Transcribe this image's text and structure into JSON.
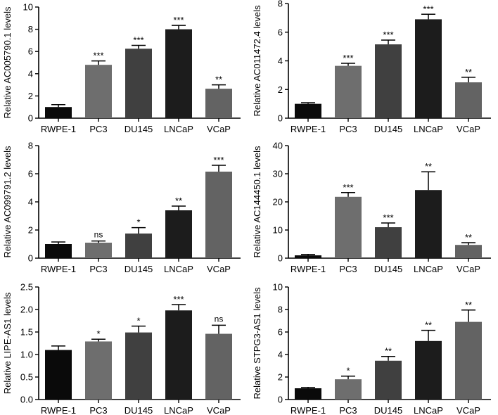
{
  "figure_title": "",
  "chart_data": [
    {
      "type": "bar",
      "title": "",
      "xlabel": "",
      "ylabel": "Relative AC005790.1 levels",
      "ylim": [
        0,
        10
      ],
      "yticks": [
        "0",
        "2",
        "4",
        "6",
        "8",
        "10"
      ],
      "categories": [
        "RWPE-1",
        "PC3",
        "DU145",
        "LNCaP",
        "VCaP"
      ],
      "values": [
        1.0,
        4.8,
        6.25,
        8.0,
        2.65
      ],
      "errors": [
        0.22,
        0.35,
        0.3,
        0.35,
        0.35
      ],
      "significance": [
        "",
        "***",
        "***",
        "***",
        "**"
      ],
      "colors": [
        "#0a0a0a",
        "#6e6e6e",
        "#404040",
        "#1c1c1c",
        "#636363"
      ]
    },
    {
      "type": "bar",
      "title": "",
      "xlabel": "",
      "ylabel": "Relative AC011472.4 levels",
      "ylim": [
        0,
        8
      ],
      "yticks": [
        "0",
        "2",
        "4",
        "6",
        "8"
      ],
      "categories": [
        "RWPE-1",
        "PC3",
        "DU145",
        "LNCaP",
        "VCaP"
      ],
      "values": [
        1.0,
        3.65,
        5.15,
        6.9,
        2.5
      ],
      "errors": [
        0.08,
        0.18,
        0.3,
        0.35,
        0.35
      ],
      "significance": [
        "",
        "***",
        "***",
        "***",
        "**"
      ],
      "colors": [
        "#0a0a0a",
        "#6e6e6e",
        "#404040",
        "#1c1c1c",
        "#636363"
      ]
    },
    {
      "type": "bar",
      "title": "",
      "xlabel": "",
      "ylabel": "Relative AC099791.2 levels",
      "ylim": [
        0,
        8
      ],
      "yticks": [
        "0",
        "2",
        "4",
        "6",
        "8"
      ],
      "categories": [
        "RWPE-1",
        "PC3",
        "DU145",
        "LNCaP",
        "VCaP"
      ],
      "values": [
        1.0,
        1.1,
        1.75,
        3.4,
        6.15
      ],
      "errors": [
        0.15,
        0.12,
        0.42,
        0.3,
        0.45
      ],
      "significance": [
        "",
        "ns",
        "*",
        "**",
        "***"
      ],
      "colors": [
        "#0a0a0a",
        "#6e6e6e",
        "#404040",
        "#1c1c1c",
        "#636363"
      ]
    },
    {
      "type": "bar",
      "title": "",
      "xlabel": "",
      "ylabel": "Relative AC144450.1 levels",
      "ylim": [
        0,
        40
      ],
      "yticks": [
        "0",
        "10",
        "20",
        "30",
        "40"
      ],
      "categories": [
        "RWPE-1",
        "PC3",
        "DU145",
        "LNCaP",
        "VCaP"
      ],
      "values": [
        1.0,
        21.8,
        11.0,
        24.2,
        4.7
      ],
      "errors": [
        0.3,
        1.5,
        1.5,
        6.5,
        0.8
      ],
      "significance": [
        "",
        "***",
        "***",
        "**",
        "**"
      ],
      "colors": [
        "#0a0a0a",
        "#6e6e6e",
        "#404040",
        "#1c1c1c",
        "#636363"
      ]
    },
    {
      "type": "bar",
      "title": "",
      "xlabel": "",
      "ylabel": "Relative LIPE-AS1 levels",
      "ylim": [
        0,
        2.5
      ],
      "yticks": [
        "0.0",
        "0.5",
        "1.0",
        "1.5",
        "2.0",
        "2.5"
      ],
      "categories": [
        "RWPE-1",
        "PC3",
        "DU145",
        "LNCaP",
        "VCaP"
      ],
      "values": [
        1.1,
        1.29,
        1.49,
        1.98,
        1.46
      ],
      "errors": [
        0.09,
        0.05,
        0.14,
        0.13,
        0.19
      ],
      "significance": [
        "",
        "*",
        "*",
        "***",
        "ns"
      ],
      "colors": [
        "#0a0a0a",
        "#6e6e6e",
        "#404040",
        "#1c1c1c",
        "#636363"
      ]
    },
    {
      "type": "bar",
      "title": "",
      "xlabel": "",
      "ylabel": "Relative STPG3-AS1 levels",
      "ylim": [
        0,
        10
      ],
      "yticks": [
        "0",
        "2",
        "4",
        "6",
        "8",
        "10"
      ],
      "categories": [
        "RWPE-1",
        "PC3",
        "DU145",
        "LNCaP",
        "VCaP"
      ],
      "values": [
        1.0,
        1.8,
        3.45,
        5.2,
        6.9
      ],
      "errors": [
        0.08,
        0.28,
        0.38,
        0.95,
        1.05
      ],
      "significance": [
        "",
        "*",
        "**",
        "**",
        "**"
      ],
      "colors": [
        "#0a0a0a",
        "#6e6e6e",
        "#404040",
        "#1c1c1c",
        "#636363"
      ]
    }
  ]
}
